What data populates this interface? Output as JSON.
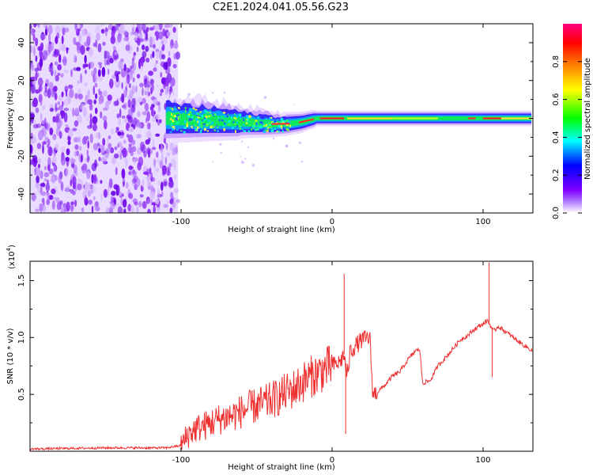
{
  "title": "C2E1.2024.041.05.56.G23",
  "chart_data": [
    {
      "type": "heatmap",
      "title": "C2E1.2024.041.05.56.G23",
      "xlabel": "Height of straight line (km)",
      "ylabel": "Frequency (Hz)",
      "xlim": [
        -200,
        133
      ],
      "ylim": [
        -50,
        50
      ],
      "x_ticks": [
        -100,
        0,
        100
      ],
      "x_tick_labels": [
        "-100",
        "0",
        "100"
      ],
      "y_ticks": [
        -40,
        -20,
        0,
        20,
        40
      ],
      "y_tick_labels": [
        "-40",
        "-20",
        "0",
        "20",
        "40"
      ],
      "noise_region_x": [
        -200,
        -102
      ],
      "signal_start_x": -110,
      "ridge_frequency_hz": [
        [
          -110,
          0
        ],
        [
          -80,
          -1
        ],
        [
          -60,
          -2
        ],
        [
          -40,
          -3
        ],
        [
          -30,
          -3
        ],
        [
          -20,
          -2
        ],
        [
          -10,
          0
        ],
        [
          0,
          0
        ],
        [
          10,
          0
        ],
        [
          50,
          0
        ],
        [
          100,
          0
        ],
        [
          133,
          0
        ]
      ],
      "colorbar": {
        "label": "Normalized spectral amplitude",
        "range": [
          0.0,
          1.0
        ],
        "ticks": [
          0.0,
          0.2,
          0.4,
          0.6,
          0.8
        ],
        "tick_labels": [
          "0.0",
          "0.2",
          "0.4",
          "0.6",
          "0.8"
        ],
        "colors": [
          "#ffffff",
          "#7f00ff",
          "#0000ff",
          "#00ffff",
          "#00ff00",
          "#ffff00",
          "#ff8000",
          "#ff0000",
          "#ff0080"
        ]
      }
    },
    {
      "type": "line",
      "xlabel": "Height of straight line (km)",
      "ylabel": "SNR (10 * v/v)",
      "y_exponent_label": "(x10",
      "y_exponent_power": "4",
      "y_exponent_close": ")",
      "xlim": [
        -200,
        133
      ],
      "ylim": [
        0,
        1.67
      ],
      "x_ticks": [
        -100,
        0,
        100
      ],
      "x_tick_labels": [
        "-100",
        "0",
        "100"
      ],
      "y_ticks": [
        0.5,
        1.0,
        1.5
      ],
      "y_tick_labels": [
        "0.5",
        "1.0",
        "1.5"
      ],
      "color": "#ee3030",
      "series": [
        {
          "name": "SNR",
          "x": [
            -200,
            -150,
            -110,
            -100,
            -95,
            -90,
            -85,
            -80,
            -75,
            -70,
            -65,
            -60,
            -55,
            -50,
            -45,
            -40,
            -35,
            -30,
            -25,
            -20,
            -15,
            -10,
            -5,
            0,
            5,
            8,
            10,
            12,
            15,
            20,
            25,
            27,
            30,
            35,
            40,
            45,
            50,
            55,
            58,
            60,
            65,
            70,
            75,
            80,
            85,
            90,
            95,
            100,
            103,
            105,
            107,
            110,
            115,
            120,
            125,
            133
          ],
          "y": [
            0.02,
            0.03,
            0.03,
            0.05,
            0.15,
            0.2,
            0.22,
            0.25,
            0.28,
            0.3,
            0.32,
            0.35,
            0.38,
            0.4,
            0.42,
            0.45,
            0.48,
            0.52,
            0.55,
            0.6,
            0.65,
            0.68,
            0.72,
            0.75,
            0.78,
            0.85,
            0.65,
            0.88,
            0.92,
            0.98,
            1.0,
            0.5,
            0.52,
            0.58,
            0.66,
            0.7,
            0.8,
            0.88,
            0.9,
            0.6,
            0.62,
            0.75,
            0.82,
            0.9,
            0.98,
            1.02,
            1.08,
            1.12,
            1.15,
            1.1,
            1.05,
            1.1,
            1.05,
            1.0,
            0.95,
            0.88
          ]
        }
      ],
      "spikes": [
        {
          "x": 8,
          "y": 1.56
        },
        {
          "x": 9,
          "y": 0.15
        },
        {
          "x": 104,
          "y": 1.66
        },
        {
          "x": 106,
          "y": 0.65
        }
      ]
    }
  ]
}
